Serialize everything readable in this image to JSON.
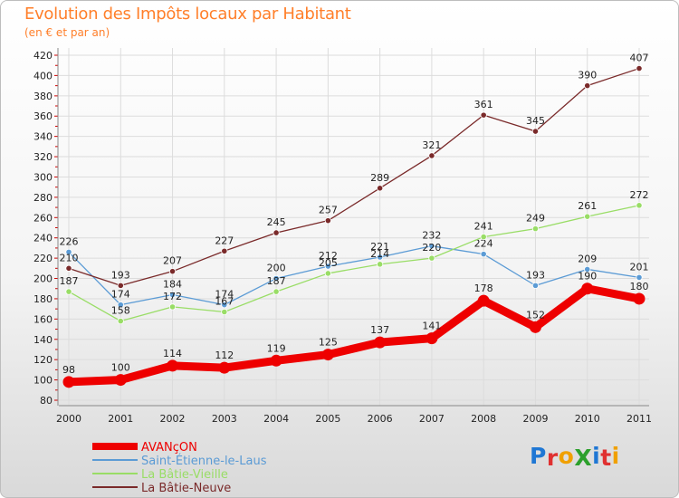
{
  "header": {
    "title": "Evolution des Impôts locaux par Habitant",
    "subtitle": "(en € et par an)"
  },
  "logo": {
    "text": "ProXiti",
    "letter_colors": [
      "#1f77d4",
      "#e03030",
      "#f0a000",
      "#2ca02c",
      "#1f77d4",
      "#e03030",
      "#f0a000"
    ]
  },
  "chart_data": {
    "type": "line",
    "title": "Evolution des Impôts locaux par Habitant",
    "subtitle": "(en € et par an)",
    "xlabel": "",
    "ylabel": "",
    "ylim": [
      80,
      420
    ],
    "ytick_step": 20,
    "categories": [
      "2000",
      "2001",
      "2002",
      "2003",
      "2004",
      "2005",
      "2006",
      "2007",
      "2008",
      "2009",
      "2010",
      "2011"
    ],
    "series": [
      {
        "name": "AVANçON",
        "color": "#ee0000",
        "bold": true,
        "values": [
          98,
          100,
          114,
          112,
          119,
          125,
          137,
          141,
          178,
          152,
          190,
          180
        ]
      },
      {
        "name": "Saint-Étienne-le-Laus",
        "color": "#5b9bd5",
        "bold": false,
        "values": [
          226,
          174,
          184,
          174,
          200,
          212,
          221,
          232,
          224,
          193,
          209,
          201
        ]
      },
      {
        "name": "La Bâtie-Vieille",
        "color": "#99dd66",
        "bold": false,
        "values": [
          187,
          158,
          172,
          167,
          187,
          205,
          214,
          220,
          241,
          249,
          261,
          272
        ]
      },
      {
        "name": "La Bâtie-Neuve",
        "color": "#7a2a2a",
        "bold": false,
        "values": [
          210,
          193,
          207,
          227,
          245,
          257,
          289,
          321,
          361,
          345,
          390,
          407
        ]
      }
    ],
    "legend_position": "bottom-left",
    "grid": true
  }
}
